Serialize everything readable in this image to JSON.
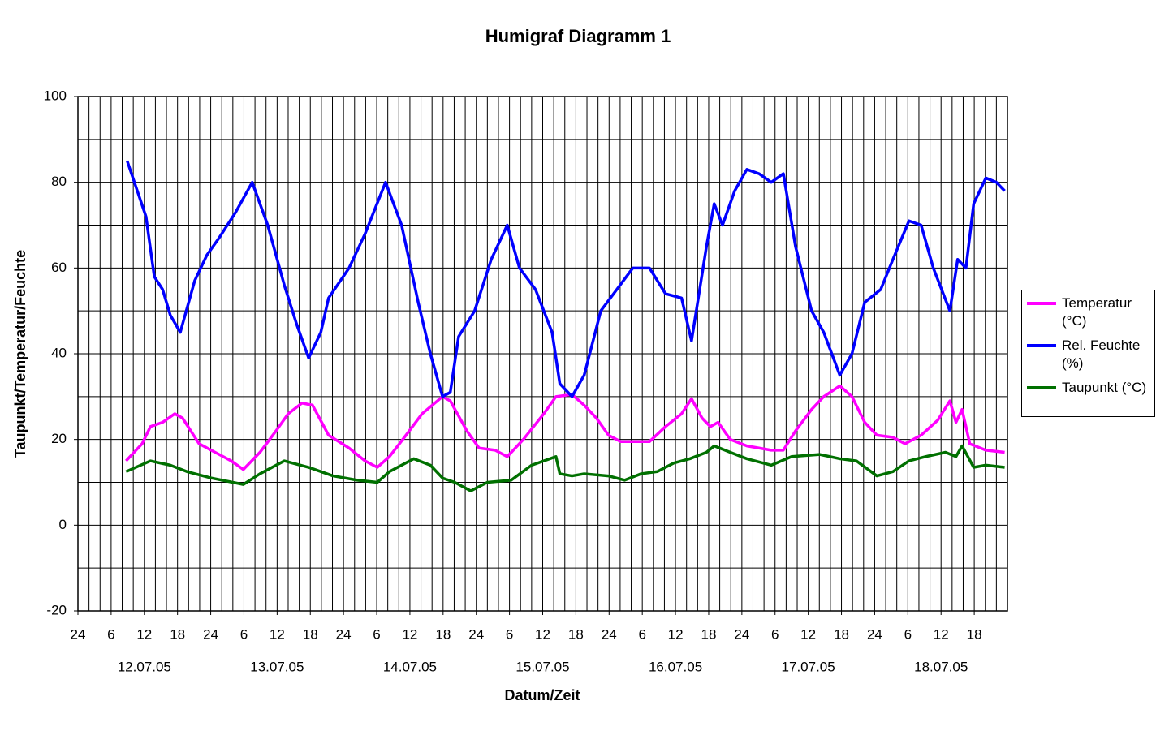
{
  "chart_data": {
    "type": "line",
    "title": "Humigraf Diagramm 1",
    "x_label": "Datum/Zeit",
    "y_label": "Taupunkt/Temperatur/Feuchte",
    "xlim": [
      0,
      168
    ],
    "ylim": [
      -20,
      100
    ],
    "yticks": [
      -20,
      0,
      20,
      40,
      60,
      80,
      100
    ],
    "ygrid": [
      -20,
      -10,
      0,
      10,
      20,
      30,
      40,
      50,
      60,
      70,
      80,
      90,
      100
    ],
    "xticks": [
      {
        "value": 0,
        "label": "24"
      },
      6,
      12,
      18,
      24,
      {
        "value": 30,
        "label": "6"
      },
      {
        "value": 36,
        "label": "12"
      },
      {
        "value": 42,
        "label": "18"
      },
      {
        "value": 48,
        "label": "24"
      },
      {
        "value": 54,
        "label": "6"
      },
      {
        "value": 60,
        "label": "12"
      },
      {
        "value": 66,
        "label": "18"
      },
      {
        "value": 72,
        "label": "24"
      },
      {
        "value": 78,
        "label": "6"
      },
      {
        "value": 84,
        "label": "12"
      },
      {
        "value": 90,
        "label": "18"
      },
      {
        "value": 96,
        "label": "24"
      },
      {
        "value": 102,
        "label": "6"
      },
      {
        "value": 108,
        "label": "12"
      },
      {
        "value": 114,
        "label": "18"
      },
      {
        "value": 120,
        "label": "24"
      },
      {
        "value": 126,
        "label": "6"
      },
      {
        "value": 132,
        "label": "12"
      },
      {
        "value": 138,
        "label": "18"
      },
      {
        "value": 144,
        "label": "24"
      },
      {
        "value": 150,
        "label": "6"
      },
      {
        "value": 156,
        "label": "12"
      },
      {
        "value": 162,
        "label": "18"
      }
    ],
    "xgrid": [
      0,
      2,
      4,
      6,
      8,
      10,
      12,
      14,
      16,
      18,
      20,
      22,
      24,
      26,
      28,
      30,
      32,
      34,
      36,
      38,
      40,
      42,
      44,
      46,
      48,
      50,
      52,
      54,
      56,
      58,
      60,
      62,
      64,
      66,
      68,
      70,
      72,
      74,
      76,
      78,
      80,
      82,
      84,
      86,
      88,
      90,
      92,
      94,
      96,
      98,
      100,
      102,
      104,
      106,
      108,
      110,
      112,
      114,
      116,
      118,
      120,
      122,
      124,
      126,
      128,
      130,
      132,
      134,
      136,
      138,
      140,
      142,
      144,
      146,
      148,
      150,
      152,
      154,
      156,
      158,
      160,
      162,
      164,
      166,
      168
    ],
    "date_labels": [
      {
        "value": 12,
        "label": "12.07.05"
      },
      {
        "value": 36,
        "label": "13.07.05"
      },
      {
        "value": 60,
        "label": "14.07.05"
      },
      {
        "value": 84,
        "label": "15.07.05"
      },
      {
        "value": 108,
        "label": "16.07.05"
      },
      {
        "value": 132,
        "label": "17.07.05"
      },
      {
        "value": 156,
        "label": "18.07.05"
      }
    ],
    "series": [
      {
        "name": "Temperatur (°C)",
        "color": "#ff00ff",
        "x": [
          8.7,
          11.6,
          13.1,
          15.3,
          17.5,
          18.9,
          21.9,
          24.8,
          27.7,
          29.9,
          32.9,
          35.8,
          38.0,
          40.5,
          42.4,
          45.3,
          49.0,
          51.9,
          54.1,
          56.3,
          59.3,
          62.2,
          65.9,
          67.3,
          70.3,
          72.5,
          75.4,
          77.6,
          80.5,
          84.2,
          86.4,
          89.3,
          91.5,
          93.7,
          95.9,
          98.1,
          103.3,
          106.2,
          109.1,
          110.9,
          112.8,
          114.3,
          115.7,
          117.9,
          120.9,
          125.3,
          127.5,
          129.7,
          132.6,
          134.8,
          137.7,
          139.9,
          142.2,
          144.4,
          147.3,
          149.5,
          152.4,
          155.4,
          157.6,
          158.7,
          159.8,
          161.2,
          164.1,
          167.5
        ],
        "values": [
          15,
          19,
          23,
          24,
          26,
          25,
          19,
          17,
          15,
          13,
          17,
          22,
          26,
          28.5,
          28,
          21,
          18,
          15,
          13.5,
          16,
          21,
          26,
          30,
          29,
          22,
          18,
          17.5,
          16,
          20,
          26,
          30,
          30.5,
          28,
          25,
          21,
          19.5,
          19.5,
          23,
          26,
          29.5,
          25,
          23,
          24,
          20,
          18.5,
          17.5,
          17.5,
          22,
          27,
          30,
          32.5,
          30,
          24,
          21,
          20.5,
          19,
          21,
          24.5,
          29,
          24,
          27,
          19,
          17.5,
          17
        ]
      },
      {
        "name": "Rel. Feuchte (%)",
        "color": "#0000ff",
        "x": [
          8.9,
          12.3,
          13.8,
          15.3,
          16.7,
          18.5,
          21.1,
          23.3,
          25.5,
          28.5,
          31.5,
          34.3,
          37.3,
          39.5,
          41.7,
          43.9,
          45.3,
          49.0,
          51.9,
          55.6,
          58.5,
          61.5,
          63.7,
          65.9,
          67.3,
          68.8,
          71.7,
          74.7,
          77.6,
          79.8,
          82.7,
          85.7,
          87.1,
          89.3,
          91.5,
          94.5,
          97.4,
          100.3,
          103.3,
          106.2,
          109.1,
          110.9,
          113.6,
          115.0,
          116.5,
          118.7,
          120.9,
          123.1,
          125.3,
          127.5,
          129.7,
          132.6,
          134.8,
          137.7,
          139.9,
          142.2,
          145.1,
          147.3,
          150.2,
          152.4,
          154.6,
          157.6,
          159.0,
          160.5,
          161.9,
          164.1,
          166.0,
          167.5
        ],
        "values": [
          85,
          72,
          58,
          55,
          49,
          45,
          57,
          63,
          67,
          73,
          80,
          70,
          56,
          47,
          39,
          45,
          53,
          60,
          68,
          80,
          70,
          52,
          40,
          30,
          31,
          44,
          50,
          62,
          70,
          60,
          55,
          45,
          33,
          30,
          35,
          50,
          55,
          60,
          60,
          54,
          53,
          43,
          65,
          75,
          70,
          78,
          83,
          82,
          80,
          82,
          65,
          50,
          45,
          35,
          40,
          52,
          55,
          62,
          71,
          70,
          60,
          50,
          62,
          60,
          75,
          81,
          80,
          78
        ]
      },
      {
        "name": "Taupunkt (°C)",
        "color": "#007000",
        "x": [
          8.7,
          13.1,
          16.7,
          19.7,
          24.1,
          29.9,
          32.9,
          37.3,
          41.7,
          46.1,
          50.5,
          54.1,
          56.3,
          60.7,
          63.7,
          65.9,
          68.1,
          71.0,
          74.0,
          78.3,
          82.0,
          86.4,
          87.1,
          89.3,
          91.5,
          95.9,
          98.8,
          101.8,
          104.7,
          107.7,
          110.6,
          113.6,
          115.0,
          117.9,
          120.9,
          125.3,
          129.0,
          134.1,
          137.7,
          140.7,
          144.4,
          147.3,
          150.2,
          153.2,
          156.8,
          158.7,
          159.8,
          161.9,
          164.1,
          167.5
        ],
        "values": [
          12.5,
          15,
          14,
          12.5,
          11,
          9.5,
          12,
          15,
          13.5,
          11.5,
          10.5,
          10,
          12.5,
          15.5,
          14,
          11,
          10,
          8,
          10,
          10.5,
          14,
          16,
          12,
          11.5,
          12,
          11.5,
          10.5,
          12,
          12.5,
          14.5,
          15.5,
          17,
          18.5,
          17,
          15.5,
          14,
          16,
          16.5,
          15.5,
          15,
          11.5,
          12.5,
          15,
          16,
          17,
          16,
          18.5,
          13.5,
          14,
          13.5
        ]
      }
    ]
  }
}
